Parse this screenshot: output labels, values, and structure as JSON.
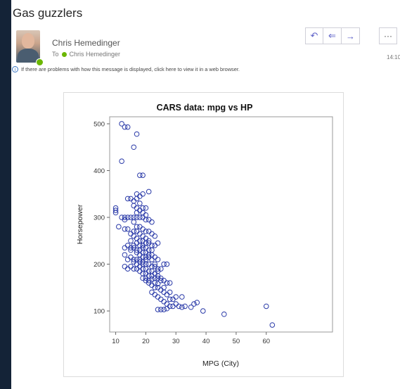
{
  "email": {
    "subject": "Gas guzzlers",
    "sender": "Chris Hemedinger",
    "to_label": "To",
    "recipient": "Chris Hemedinger",
    "time": "14:10",
    "info_bar": "If there are problems with how this message is displayed, click here to view it in a web browser.",
    "actions": [
      {
        "name": "reply",
        "icon": "reply-icon",
        "glyph": "↶"
      },
      {
        "name": "reply-all",
        "icon": "reply-all-icon",
        "glyph": "⇐"
      },
      {
        "name": "forward",
        "icon": "forward-icon",
        "glyph": "→"
      }
    ],
    "more_glyph": "···"
  },
  "colors": {
    "accent": "#5b5fc7",
    "marker": "#2a3aa8",
    "presence": "#6bb700",
    "background_dark": "#142337"
  },
  "chart_data": {
    "type": "scatter",
    "title": "CARS data: mpg vs HP",
    "xlabel": "MPG (City)",
    "ylabel": "Horsepower",
    "xlim": [
      8,
      82
    ],
    "ylim": [
      55,
      515
    ],
    "xticks": [
      10,
      20,
      30,
      40,
      50,
      60
    ],
    "yticks": [
      100,
      200,
      300,
      400,
      500
    ],
    "grid": false,
    "points": [
      [
        12,
        500
      ],
      [
        13,
        493
      ],
      [
        14,
        493
      ],
      [
        17,
        478
      ],
      [
        16,
        450
      ],
      [
        12,
        420
      ],
      [
        18,
        390
      ],
      [
        19,
        390
      ],
      [
        10,
        320
      ],
      [
        10,
        315
      ],
      [
        10,
        310
      ],
      [
        12,
        300
      ],
      [
        13,
        300
      ],
      [
        14,
        300
      ],
      [
        13,
        295
      ],
      [
        15,
        300
      ],
      [
        11,
        280
      ],
      [
        13,
        275
      ],
      [
        14,
        275
      ],
      [
        14,
        340
      ],
      [
        15,
        340
      ],
      [
        16,
        335
      ],
      [
        17,
        340
      ],
      [
        18,
        345
      ],
      [
        17,
        350
      ],
      [
        19,
        350
      ],
      [
        21,
        355
      ],
      [
        18,
        330
      ],
      [
        19,
        320
      ],
      [
        20,
        320
      ],
      [
        17,
        310
      ],
      [
        16,
        300
      ],
      [
        17,
        300
      ],
      [
        18,
        300
      ],
      [
        19,
        300
      ],
      [
        20,
        295
      ],
      [
        21,
        295
      ],
      [
        22,
        290
      ],
      [
        16,
        290
      ],
      [
        17,
        280
      ],
      [
        18,
        280
      ],
      [
        19,
        275
      ],
      [
        20,
        270
      ],
      [
        21,
        270
      ],
      [
        22,
        265
      ],
      [
        23,
        260
      ],
      [
        16,
        260
      ],
      [
        17,
        255
      ],
      [
        18,
        250
      ],
      [
        19,
        250
      ],
      [
        20,
        245
      ],
      [
        21,
        245
      ],
      [
        22,
        240
      ],
      [
        23,
        240
      ],
      [
        24,
        245
      ],
      [
        14,
        240
      ],
      [
        15,
        235
      ],
      [
        16,
        235
      ],
      [
        17,
        230
      ],
      [
        18,
        230
      ],
      [
        19,
        225
      ],
      [
        20,
        225
      ],
      [
        21,
        220
      ],
      [
        22,
        220
      ],
      [
        23,
        215
      ],
      [
        24,
        210
      ],
      [
        13,
        220
      ],
      [
        15,
        215
      ],
      [
        16,
        210
      ],
      [
        17,
        210
      ],
      [
        18,
        205
      ],
      [
        19,
        205
      ],
      [
        20,
        200
      ],
      [
        21,
        200
      ],
      [
        22,
        195
      ],
      [
        23,
        195
      ],
      [
        24,
        190
      ],
      [
        25,
        190
      ],
      [
        26,
        200
      ],
      [
        27,
        200
      ],
      [
        15,
        195
      ],
      [
        16,
        190
      ],
      [
        17,
        190
      ],
      [
        18,
        185
      ],
      [
        19,
        180
      ],
      [
        20,
        180
      ],
      [
        21,
        175
      ],
      [
        22,
        175
      ],
      [
        23,
        170
      ],
      [
        24,
        170
      ],
      [
        25,
        165
      ],
      [
        26,
        165
      ],
      [
        27,
        160
      ],
      [
        28,
        160
      ],
      [
        19,
        170
      ],
      [
        20,
        165
      ],
      [
        21,
        160
      ],
      [
        22,
        155
      ],
      [
        23,
        150
      ],
      [
        24,
        150
      ],
      [
        25,
        145
      ],
      [
        26,
        140
      ],
      [
        27,
        135
      ],
      [
        28,
        140
      ],
      [
        22,
        140
      ],
      [
        23,
        135
      ],
      [
        24,
        130
      ],
      [
        25,
        125
      ],
      [
        26,
        120
      ],
      [
        27,
        115
      ],
      [
        28,
        110
      ],
      [
        29,
        110
      ],
      [
        30,
        115
      ],
      [
        31,
        110
      ],
      [
        32,
        108
      ],
      [
        33,
        110
      ],
      [
        35,
        108
      ],
      [
        36,
        115
      ],
      [
        37,
        118
      ],
      [
        39,
        100
      ],
      [
        30,
        130
      ],
      [
        32,
        130
      ],
      [
        29,
        125
      ],
      [
        28,
        125
      ],
      [
        27,
        105
      ],
      [
        26,
        103
      ],
      [
        25,
        103
      ],
      [
        24,
        103
      ],
      [
        46,
        93
      ],
      [
        60,
        110
      ],
      [
        62,
        70
      ],
      [
        20,
        210
      ],
      [
        19,
        215
      ],
      [
        18,
        220
      ],
      [
        17,
        225
      ],
      [
        16,
        240
      ],
      [
        18,
        265
      ],
      [
        19,
        260
      ],
      [
        20,
        255
      ],
      [
        21,
        250
      ],
      [
        15,
        250
      ],
      [
        17,
        245
      ],
      [
        18,
        240
      ],
      [
        19,
        240
      ],
      [
        20,
        235
      ],
      [
        21,
        230
      ],
      [
        22,
        230
      ],
      [
        18,
        210
      ],
      [
        19,
        200
      ],
      [
        17,
        200
      ],
      [
        16,
        205
      ],
      [
        20,
        190
      ],
      [
        21,
        185
      ],
      [
        22,
        185
      ],
      [
        23,
        180
      ],
      [
        24,
        175
      ],
      [
        20,
        215
      ],
      [
        21,
        215
      ],
      [
        22,
        210
      ],
      [
        14,
        210
      ],
      [
        19,
        235
      ],
      [
        18,
        195
      ],
      [
        23,
        200
      ],
      [
        24,
        185
      ],
      [
        25,
        170
      ],
      [
        26,
        150
      ],
      [
        21,
        165
      ],
      [
        22,
        168
      ],
      [
        23,
        160
      ],
      [
        24,
        158
      ],
      [
        19,
        190
      ],
      [
        20,
        170
      ],
      [
        17,
        270
      ],
      [
        16,
        270
      ],
      [
        15,
        265
      ],
      [
        18,
        315
      ],
      [
        19,
        310
      ],
      [
        20,
        305
      ],
      [
        17,
        320
      ],
      [
        16,
        325
      ],
      [
        15,
        230
      ],
      [
        13,
        235
      ],
      [
        14,
        190
      ],
      [
        13,
        195
      ]
    ]
  }
}
